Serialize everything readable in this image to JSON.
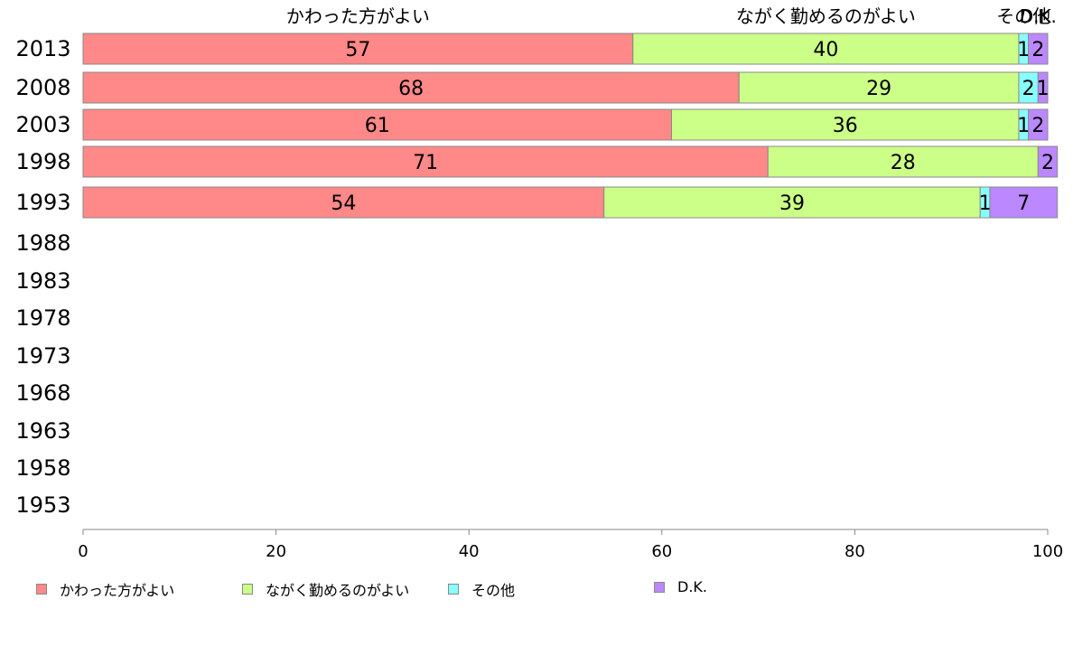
{
  "chart_data": {
    "type": "bar",
    "orientation": "horizontal",
    "stacked": true,
    "categories": [
      "2013",
      "2008",
      "2003",
      "1998",
      "1993",
      "1988",
      "1983",
      "1978",
      "1973",
      "1968",
      "1963",
      "1958",
      "1953"
    ],
    "series": [
      {
        "name": "かわった方がよい",
        "color": "#ff8888",
        "values": [
          57,
          68,
          61,
          71,
          54,
          null,
          null,
          null,
          null,
          null,
          null,
          null,
          null
        ]
      },
      {
        "name": "ながく勤めるのがよい",
        "color": "#ccff88",
        "values": [
          40,
          29,
          36,
          28,
          39,
          null,
          null,
          null,
          null,
          null,
          null,
          null,
          null
        ]
      },
      {
        "name": "その他",
        "color": "#88ffff",
        "values": [
          1,
          2,
          1,
          0,
          1,
          null,
          null,
          null,
          null,
          null,
          null,
          null,
          null
        ]
      },
      {
        "name": "D.K.",
        "color": "#bb88ff",
        "values": [
          2,
          1,
          2,
          2,
          7,
          null,
          null,
          null,
          null,
          null,
          null,
          null,
          null
        ]
      }
    ],
    "top_labels": [
      "かわった方がよい",
      "ながく勤めるのがよい",
      "その他",
      "D.K."
    ],
    "xlim": [
      0,
      100
    ],
    "xticks": [
      0,
      20,
      40,
      60,
      80,
      100
    ],
    "grid": false,
    "legend_position": "bottom"
  }
}
